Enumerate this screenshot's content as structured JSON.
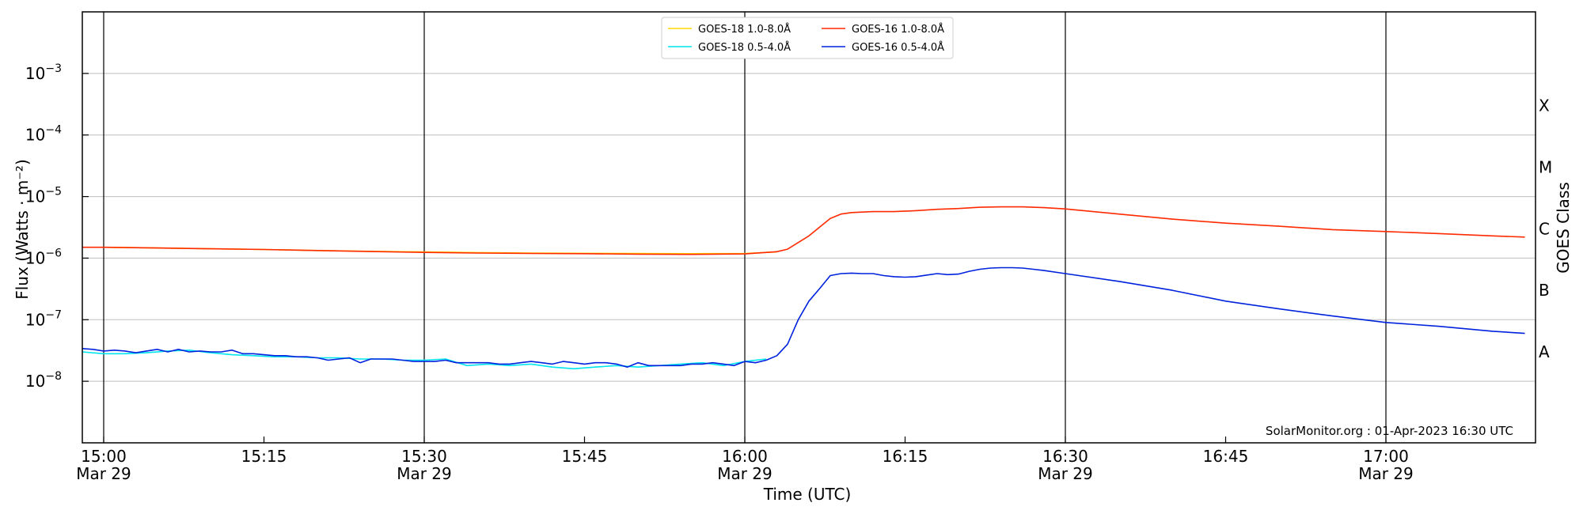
{
  "chart_data": {
    "type": "line",
    "title": "",
    "xlabel": "Time (UTC)",
    "ylabel": "Flux (Watts · m⁻²)",
    "right_label": "GOES Class",
    "y_scale": "log",
    "ylim": [
      1e-09,
      0.01
    ],
    "xlim": [
      "14:58",
      "17:14"
    ],
    "grid": "horizontal at decades, vertical at half-hours",
    "legend_position": "top-center",
    "credit": "SolarMonitor.org : 01-Apr-2023 16:30 UTC",
    "y_ticks": [
      {
        "value": 0.001,
        "base": "10",
        "exp": "−3"
      },
      {
        "value": 0.0001,
        "base": "10",
        "exp": "−4"
      },
      {
        "value": 1e-05,
        "base": "10",
        "exp": "−5"
      },
      {
        "value": 1e-06,
        "base": "10",
        "exp": "−6"
      },
      {
        "value": 1e-07,
        "base": "10",
        "exp": "−7"
      },
      {
        "value": 1e-08,
        "base": "10",
        "exp": "−8"
      }
    ],
    "x_ticks": [
      {
        "time": "15:00",
        "label": "15:00",
        "date": "Mar 29"
      },
      {
        "time": "15:15",
        "label": "15:15",
        "date": ""
      },
      {
        "time": "15:30",
        "label": "15:30",
        "date": "Mar 29"
      },
      {
        "time": "15:45",
        "label": "15:45",
        "date": ""
      },
      {
        "time": "16:00",
        "label": "16:00",
        "date": "Mar 29"
      },
      {
        "time": "16:15",
        "label": "16:15",
        "date": ""
      },
      {
        "time": "16:30",
        "label": "16:30",
        "date": "Mar 29"
      },
      {
        "time": "16:45",
        "label": "16:45",
        "date": ""
      },
      {
        "time": "17:00",
        "label": "17:00",
        "date": "Mar 29"
      }
    ],
    "goes_classes": [
      {
        "label": "X",
        "value": 0.0003
      },
      {
        "label": "M",
        "value": 3e-05
      },
      {
        "label": "C",
        "value": 3e-06
      },
      {
        "label": "B",
        "value": 3e-07
      },
      {
        "label": "A",
        "value": 3e-08
      }
    ],
    "series": [
      {
        "name": "GOES-18 1.0-8.0Å",
        "color": "#ffd700",
        "x": [
          "15:00",
          "15:05",
          "15:10",
          "15:15",
          "15:20",
          "15:25",
          "15:30",
          "15:35",
          "15:40",
          "15:45",
          "15:50",
          "15:55",
          "16:00",
          "16:03"
        ],
        "values": [
          1.5e-06,
          1.46e-06,
          1.42e-06,
          1.38e-06,
          1.33e-06,
          1.29e-06,
          1.26e-06,
          1.23e-06,
          1.21e-06,
          1.2e-06,
          1.19e-06,
          1.18e-06,
          1.19e-06,
          1.26e-06
        ]
      },
      {
        "name": "GOES-18 0.5-4.0Å",
        "color": "#00e5ee",
        "x": [
          "14:58",
          "15:00",
          "15:02",
          "15:04",
          "15:06",
          "15:08",
          "15:10",
          "15:12",
          "15:14",
          "15:16",
          "15:18",
          "15:20",
          "15:22",
          "15:24",
          "15:26",
          "15:28",
          "15:30",
          "15:32",
          "15:34",
          "15:36",
          "15:38",
          "15:40",
          "15:42",
          "15:44",
          "15:46",
          "15:48",
          "15:50",
          "15:52",
          "15:54",
          "15:56",
          "15:58",
          "16:00",
          "16:02"
        ],
        "values": [
          3e-08,
          2.8e-08,
          2.8e-08,
          2.9e-08,
          3.1e-08,
          3.2e-08,
          2.9e-08,
          2.7e-08,
          2.6e-08,
          2.5e-08,
          2.5e-08,
          2.4e-08,
          2.4e-08,
          2.3e-08,
          2.3e-08,
          2.2e-08,
          2.2e-08,
          2.3e-08,
          1.8e-08,
          1.9e-08,
          1.8e-08,
          1.9e-08,
          1.7e-08,
          1.6e-08,
          1.7e-08,
          1.8e-08,
          1.7e-08,
          1.8e-08,
          1.9e-08,
          2e-08,
          1.8e-08,
          2.1e-08,
          2.3e-08
        ]
      },
      {
        "name": "GOES-16 1.0-8.0Å",
        "color": "#ff2a00",
        "x": [
          "14:58",
          "15:00",
          "15:05",
          "15:10",
          "15:15",
          "15:20",
          "15:25",
          "15:30",
          "15:35",
          "15:40",
          "15:45",
          "15:50",
          "15:55",
          "16:00",
          "16:03",
          "16:04",
          "16:06",
          "16:08",
          "16:09",
          "16:10",
          "16:12",
          "16:14",
          "16:16",
          "16:18",
          "16:20",
          "16:22",
          "16:24",
          "16:26",
          "16:28",
          "16:30",
          "16:35",
          "16:40",
          "16:45",
          "16:50",
          "16:55",
          "17:00",
          "17:05",
          "17:10",
          "17:13"
        ],
        "values": [
          1.5e-06,
          1.5e-06,
          1.46e-06,
          1.42e-06,
          1.38e-06,
          1.33e-06,
          1.28e-06,
          1.24e-06,
          1.21e-06,
          1.19e-06,
          1.18e-06,
          1.16e-06,
          1.15e-06,
          1.17e-06,
          1.27e-06,
          1.4e-06,
          2.3e-06,
          4.4e-06,
          5.2e-06,
          5.5e-06,
          5.7e-06,
          5.7e-06,
          5.9e-06,
          6.2e-06,
          6.4e-06,
          6.7e-06,
          6.8e-06,
          6.8e-06,
          6.6e-06,
          6.3e-06,
          5.2e-06,
          4.3e-06,
          3.7e-06,
          3.3e-06,
          2.9e-06,
          2.7e-06,
          2.5e-06,
          2.3e-06,
          2.2e-06
        ]
      },
      {
        "name": "GOES-16 0.5-4.0Å",
        "color": "#0022dd",
        "x": [
          "14:58",
          "14:59",
          "15:00",
          "15:01",
          "15:02",
          "15:03",
          "15:04",
          "15:05",
          "15:06",
          "15:07",
          "15:08",
          "15:09",
          "15:10",
          "15:11",
          "15:12",
          "15:13",
          "15:14",
          "15:15",
          "15:16",
          "15:17",
          "15:18",
          "15:19",
          "15:20",
          "15:21",
          "15:22",
          "15:23",
          "15:24",
          "15:25",
          "15:26",
          "15:27",
          "15:28",
          "15:29",
          "15:30",
          "15:31",
          "15:32",
          "15:33",
          "15:34",
          "15:35",
          "15:36",
          "15:37",
          "15:38",
          "15:39",
          "15:40",
          "15:41",
          "15:42",
          "15:43",
          "15:44",
          "15:45",
          "15:46",
          "15:47",
          "15:48",
          "15:49",
          "15:50",
          "15:51",
          "15:52",
          "15:53",
          "15:54",
          "15:55",
          "15:56",
          "15:57",
          "15:58",
          "15:59",
          "16:00",
          "16:01",
          "16:02",
          "16:03",
          "16:04",
          "16:05",
          "16:06",
          "16:07",
          "16:08",
          "16:09",
          "16:10",
          "16:11",
          "16:12",
          "16:13",
          "16:14",
          "16:15",
          "16:16",
          "16:17",
          "16:18",
          "16:19",
          "16:20",
          "16:21",
          "16:22",
          "16:23",
          "16:24",
          "16:25",
          "16:26",
          "16:27",
          "16:28",
          "16:30",
          "16:35",
          "16:40",
          "16:45",
          "16:50",
          "16:55",
          "17:00",
          "17:05",
          "17:10",
          "17:13"
        ],
        "values": [
          3.4e-08,
          3.3e-08,
          3.1e-08,
          3.2e-08,
          3.1e-08,
          2.9e-08,
          3.1e-08,
          3.3e-08,
          3e-08,
          3.3e-08,
          3e-08,
          3.1e-08,
          3e-08,
          3e-08,
          3.2e-08,
          2.8e-08,
          2.8e-08,
          2.7e-08,
          2.6e-08,
          2.6e-08,
          2.5e-08,
          2.5e-08,
          2.4e-08,
          2.2e-08,
          2.3e-08,
          2.4e-08,
          2e-08,
          2.3e-08,
          2.3e-08,
          2.3e-08,
          2.2e-08,
          2.1e-08,
          2.1e-08,
          2.1e-08,
          2.2e-08,
          2e-08,
          2e-08,
          2e-08,
          2e-08,
          1.9e-08,
          1.9e-08,
          2e-08,
          2.1e-08,
          2e-08,
          1.9e-08,
          2.1e-08,
          2e-08,
          1.9e-08,
          2e-08,
          2e-08,
          1.9e-08,
          1.7e-08,
          2e-08,
          1.8e-08,
          1.8e-08,
          1.8e-08,
          1.8e-08,
          1.9e-08,
          1.9e-08,
          2e-08,
          1.9e-08,
          1.8e-08,
          2.1e-08,
          2e-08,
          2.2e-08,
          2.6e-08,
          4e-08,
          1e-07,
          2e-07,
          3.2e-07,
          5.2e-07,
          5.6e-07,
          5.7e-07,
          5.6e-07,
          5.6e-07,
          5.2e-07,
          5e-07,
          4.9e-07,
          5e-07,
          5.3e-07,
          5.6e-07,
          5.4e-07,
          5.5e-07,
          6.1e-07,
          6.6e-07,
          6.9e-07,
          7e-07,
          7e-07,
          6.9e-07,
          6.6e-07,
          6.3e-07,
          5.6e-07,
          4.2e-07,
          3e-07,
          2e-07,
          1.5e-07,
          1.15e-07,
          9e-08,
          7.8e-08,
          6.5e-08,
          6e-08
        ]
      }
    ]
  }
}
